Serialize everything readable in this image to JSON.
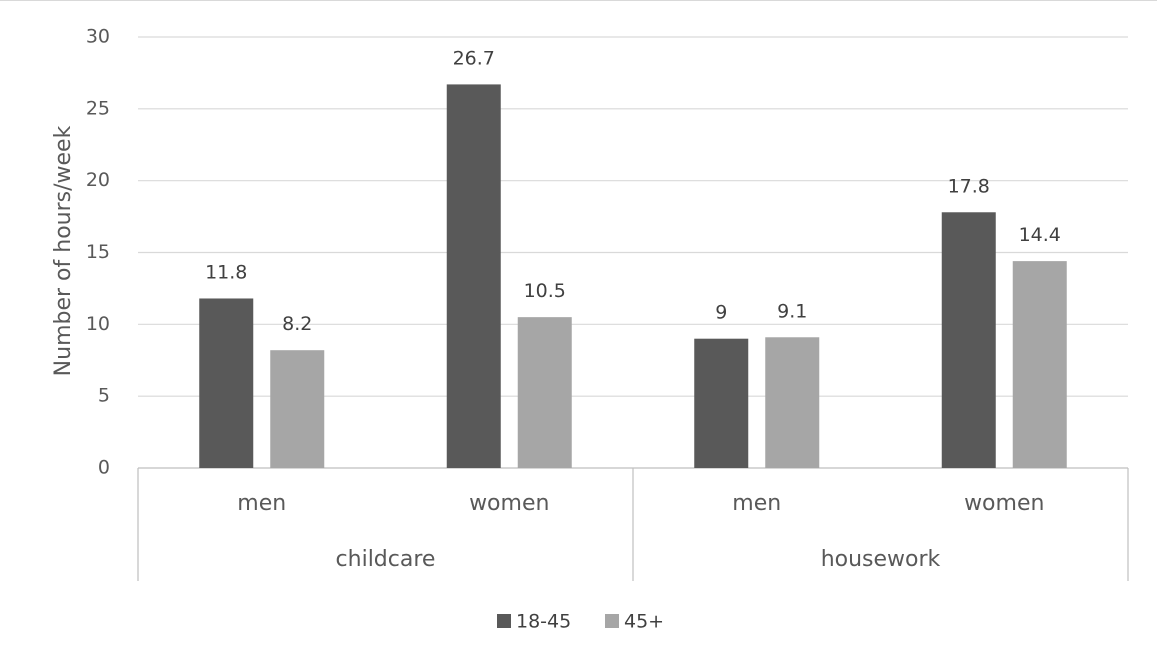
{
  "chart_data": {
    "type": "bar",
    "title": "",
    "ylabel": "Number of hours/week",
    "xlabel": "",
    "ylim": [
      0,
      30
    ],
    "yticks": [
      0,
      5,
      10,
      15,
      20,
      25,
      30
    ],
    "grid": true,
    "legend_position": "bottom",
    "groups": [
      {
        "label": "childcare",
        "categories": [
          "men",
          "women"
        ]
      },
      {
        "label": "housework",
        "categories": [
          "men",
          "women"
        ]
      }
    ],
    "categories": [
      "men",
      "women",
      "men",
      "women"
    ],
    "series": [
      {
        "name": "18-45",
        "color": "#595959",
        "values": [
          11.8,
          26.7,
          9,
          17.8
        ],
        "labels": [
          "11.8",
          "26.7",
          "9",
          "17.8"
        ]
      },
      {
        "name": "45+",
        "color": "#a6a6a6",
        "values": [
          8.2,
          10.5,
          9.1,
          14.4
        ],
        "labels": [
          "8.2",
          "10.5",
          "9.1",
          "14.4"
        ]
      }
    ]
  }
}
